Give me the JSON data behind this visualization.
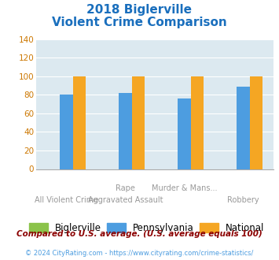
{
  "title_line1": "2018 Biglerville",
  "title_line2": "Violent Crime Comparison",
  "cat_labels_top": [
    "",
    "Rape",
    "Murder & Mans...",
    ""
  ],
  "cat_labels_bot": [
    "All Violent Crime",
    "Aggravated Assault",
    "",
    "Robbery"
  ],
  "biglerville": [
    0,
    0,
    0,
    0
  ],
  "pennsylvania": [
    80,
    82,
    76,
    89
  ],
  "national": [
    100,
    100,
    100,
    100
  ],
  "colors_biglerville": "#8bc34a",
  "colors_pennsylvania": "#4d9de0",
  "colors_national": "#f5a623",
  "ylim": [
    0,
    140
  ],
  "yticks": [
    0,
    20,
    40,
    60,
    80,
    100,
    120,
    140
  ],
  "plot_background": "#dce9f0",
  "title_color": "#1a6fbd",
  "grid_color": "#ffffff",
  "legend_labels": [
    "Biglerville",
    "Pennsylvania",
    "National"
  ],
  "footnote1": "Compared to U.S. average. (U.S. average equals 100)",
  "footnote2": "© 2024 CityRating.com - https://www.cityrating.com/crime-statistics/",
  "footnote1_color": "#8b0000",
  "footnote2_color": "#4d9de0",
  "xtick_color": "#999999",
  "ytick_color": "#cc7700"
}
